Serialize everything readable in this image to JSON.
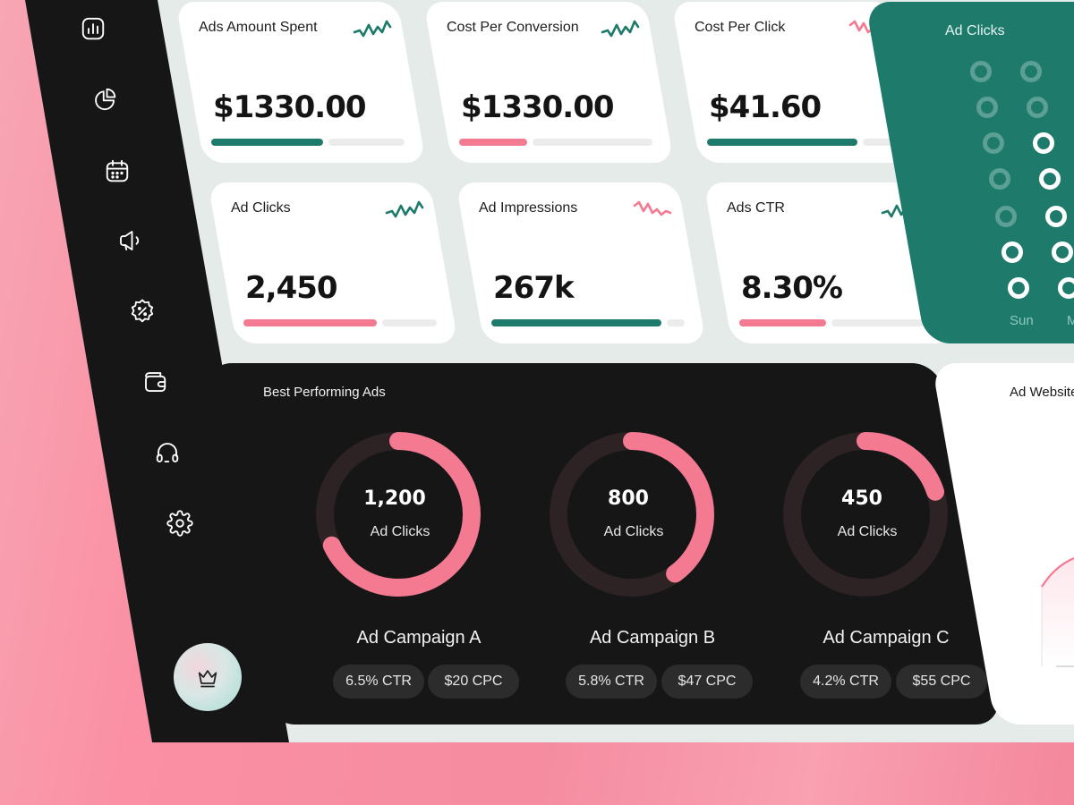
{
  "nav": {
    "items": [
      {
        "name": "analytics",
        "icon": "bar-chart-icon"
      },
      {
        "name": "reports",
        "icon": "pie-chart-icon"
      },
      {
        "name": "calendar",
        "icon": "calendar-icon"
      },
      {
        "name": "campaigns",
        "icon": "megaphone-icon"
      },
      {
        "name": "offers",
        "icon": "discount-badge-icon"
      },
      {
        "name": "wallet",
        "icon": "wallet-icon"
      },
      {
        "name": "support",
        "icon": "headset-icon"
      },
      {
        "name": "settings",
        "icon": "gear-icon"
      }
    ],
    "premium_icon": "crown-icon"
  },
  "stats": [
    {
      "title": "Ads Amount Spent",
      "value": "$1330.00",
      "progress": 0.58,
      "color": "#1e7b6c"
    },
    {
      "title": "Cost Per Conversion",
      "value": "$1330.00",
      "progress": 0.35,
      "color": "#f47a92"
    },
    {
      "title": "Cost Per Click",
      "value": "$41.60",
      "progress": 0.78,
      "color": "#1e7b6c"
    },
    {
      "title": "Ad Clicks",
      "value": "2,450",
      "progress": 0.69,
      "color": "#f47a92"
    },
    {
      "title": "Ad Impressions",
      "value": "267k",
      "progress": 0.88,
      "color": "#1e7b6c"
    },
    {
      "title": "Ads CTR",
      "value": "8.30%",
      "progress": 0.45,
      "color": "#f47a92"
    }
  ],
  "ad_clicks_panel": {
    "title": "Ad Clicks",
    "days": [
      "Sun",
      "M"
    ]
  },
  "best_ads": {
    "title": "Best Performing Ads",
    "campaigns": [
      {
        "value": "1,200",
        "label": "Ad Clicks",
        "name": "Ad Campaign A",
        "ctr": "6.5% CTR",
        "cpc": "$20 CPC",
        "fraction": 0.68
      },
      {
        "value": "800",
        "label": "Ad Clicks",
        "name": "Ad Campaign B",
        "ctr": "5.8% CTR",
        "cpc": "$47 CPC",
        "fraction": 0.4
      },
      {
        "value": "450",
        "label": "Ad Clicks",
        "name": "Ad Campaign C",
        "ctr": "4.2% CTR",
        "cpc": "$55 CPC",
        "fraction": 0.2
      }
    ]
  },
  "website_panel": {
    "title": "Ad Website"
  },
  "colors": {
    "accent_green": "#1e7b6c",
    "accent_pink": "#f47a92",
    "sidebar": "#161616",
    "background": "#e5ebe9"
  }
}
